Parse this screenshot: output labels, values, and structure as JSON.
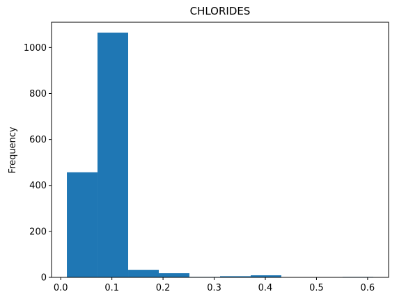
{
  "chart_data": {
    "type": "bar",
    "title": "CHLORIDES",
    "xlabel": "",
    "ylabel": "Frequency",
    "color": "#1f77b4",
    "bins": [
      {
        "x0": 0.012,
        "x1": 0.0719,
        "value": 457
      },
      {
        "x0": 0.0719,
        "x1": 0.1318,
        "value": 1065
      },
      {
        "x0": 0.1318,
        "x1": 0.1917,
        "value": 33
      },
      {
        "x0": 0.1917,
        "x1": 0.2516,
        "value": 18
      },
      {
        "x0": 0.2516,
        "x1": 0.3115,
        "value": 2
      },
      {
        "x0": 0.3115,
        "x1": 0.3714,
        "value": 5
      },
      {
        "x0": 0.3714,
        "x1": 0.4313,
        "value": 9
      },
      {
        "x0": 0.4313,
        "x1": 0.4912,
        "value": 0
      },
      {
        "x0": 0.4912,
        "x1": 0.5511,
        "value": 0
      },
      {
        "x0": 0.5511,
        "x1": 0.611,
        "value": 2
      }
    ],
    "xlim": [
      -0.018,
      0.641
    ],
    "ylim": [
      0,
      1110
    ],
    "xticks": [
      {
        "value": 0.0,
        "label": "0.0"
      },
      {
        "value": 0.1,
        "label": "0.1"
      },
      {
        "value": 0.2,
        "label": "0.2"
      },
      {
        "value": 0.3,
        "label": "0.3"
      },
      {
        "value": 0.4,
        "label": "0.4"
      },
      {
        "value": 0.5,
        "label": "0.5"
      },
      {
        "value": 0.6,
        "label": "0.6"
      }
    ],
    "yticks": [
      {
        "value": 0,
        "label": "0"
      },
      {
        "value": 200,
        "label": "200"
      },
      {
        "value": 400,
        "label": "400"
      },
      {
        "value": 600,
        "label": "600"
      },
      {
        "value": 800,
        "label": "800"
      },
      {
        "value": 1000,
        "label": "1000"
      }
    ],
    "grid": false,
    "legend": "none"
  }
}
